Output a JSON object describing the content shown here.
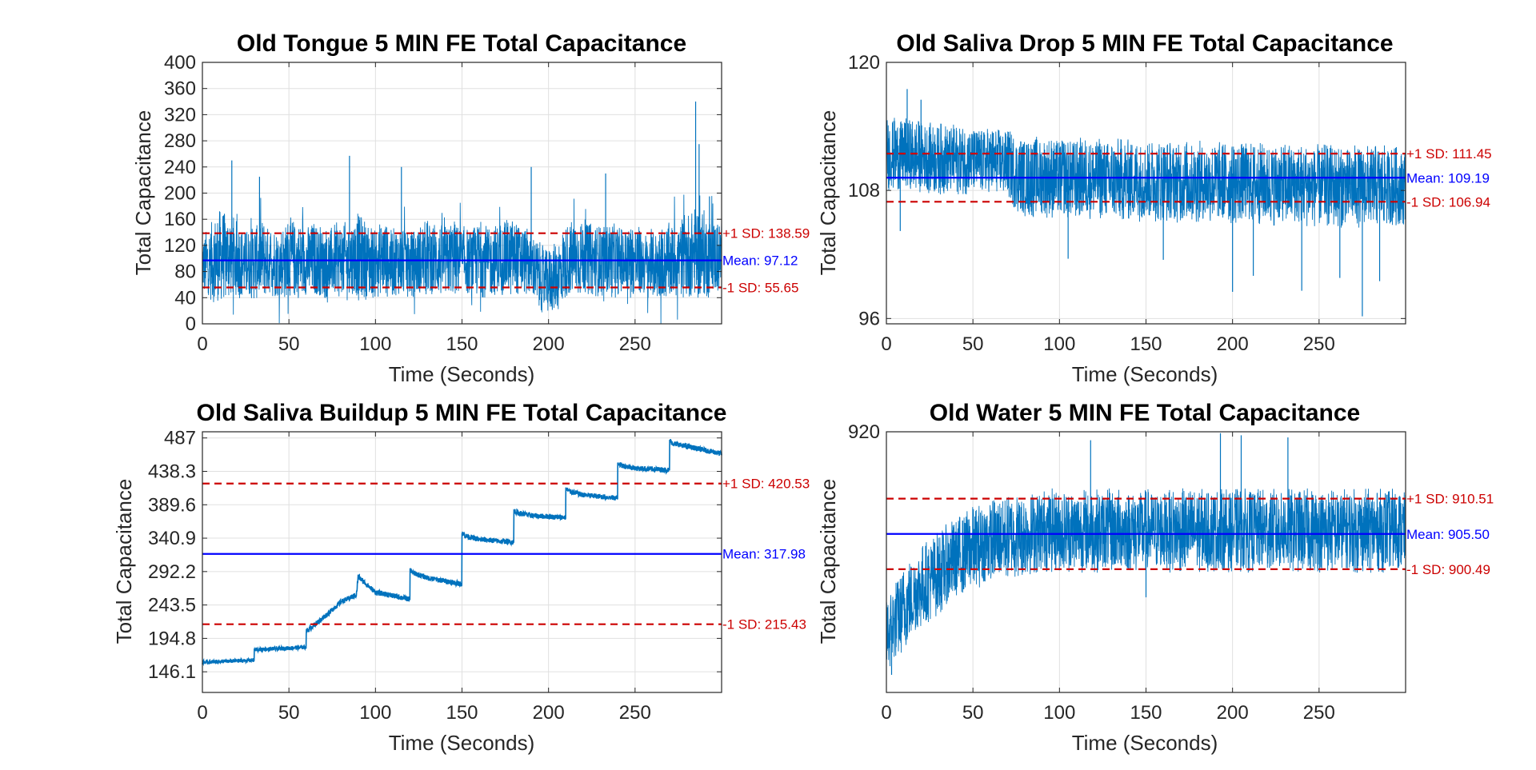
{
  "colors": {
    "signal": "#0072BD",
    "mean": "#0000FF",
    "sd": "#CC0000",
    "grid": "#E0E0E0",
    "axis": "#262626"
  },
  "chart_data": [
    {
      "type": "line",
      "title": "Old Tongue 5 MIN FE Total Capacitance",
      "xlabel": "Time (Seconds)",
      "ylabel": "Total Capacitance",
      "xlim": [
        0,
        300
      ],
      "ylim": [
        0,
        400
      ],
      "x_ticks": [
        0,
        50,
        100,
        150,
        200,
        250
      ],
      "y_ticks": [
        0,
        40,
        80,
        120,
        160,
        200,
        240,
        280,
        320,
        360,
        400
      ],
      "y_tick_labels": [
        "0",
        "40",
        "80",
        "120",
        "160",
        "200",
        "240",
        "280",
        "320",
        "360",
        "400"
      ],
      "grid": true,
      "series": [
        {
          "x": [
            0,
            5,
            10,
            15,
            20,
            25,
            30,
            35,
            40,
            45,
            50,
            55,
            60,
            65,
            70,
            75,
            80,
            85,
            90,
            95,
            100,
            105,
            110,
            115,
            120,
            125,
            130,
            135,
            140,
            145,
            150,
            155,
            160,
            165,
            170,
            175,
            180,
            185,
            190,
            195,
            200,
            205,
            210,
            215,
            220,
            225,
            230,
            235,
            240,
            245,
            250,
            255,
            260,
            265,
            270,
            275,
            280,
            285,
            290,
            295,
            300
          ],
          "y_mean": [
            90,
            95,
            100,
            105,
            98,
            92,
            96,
            100,
            95,
            92,
            100,
            96,
            94,
            98,
            92,
            95,
            100,
            97,
            104,
            96,
            94,
            100,
            92,
            95,
            90,
            96,
            100,
            98,
            95,
            102,
            97,
            94,
            100,
            95,
            98,
            100,
            102,
            96,
            92,
            70,
            65,
            72,
            95,
            100,
            102,
            98,
            96,
            100,
            94,
            96,
            98,
            90,
            88,
            92,
            96,
            100,
            104,
            110,
            105,
            102,
            100
          ],
          "y_spread": [
            45,
            60,
            75,
            70,
            60,
            55,
            60,
            60,
            55,
            55,
            65,
            60,
            55,
            60,
            55,
            55,
            60,
            55,
            70,
            60,
            55,
            60,
            55,
            55,
            50,
            55,
            60,
            60,
            55,
            60,
            55,
            50,
            60,
            55,
            55,
            60,
            60,
            55,
            50,
            55,
            50,
            55,
            60,
            60,
            60,
            55,
            55,
            60,
            55,
            55,
            60,
            50,
            50,
            55,
            60,
            60,
            65,
            75,
            70,
            60,
            60
          ],
          "peaks": [
            [
              17,
              250
            ],
            [
              33,
              225
            ],
            [
              85,
              257
            ],
            [
              115,
              240
            ],
            [
              190,
              240
            ],
            [
              233,
              230
            ],
            [
              285,
              340
            ],
            [
              287,
              275
            ],
            [
              293,
              195
            ]
          ]
        }
      ],
      "hlines": [
        {
          "kind": "sd",
          "value": 138.59,
          "label": "+1 SD: 138.59"
        },
        {
          "kind": "mean",
          "value": 97.12,
          "label": "Mean: 97.12"
        },
        {
          "kind": "sd",
          "value": 55.65,
          "label": "-1 SD: 55.65"
        }
      ]
    },
    {
      "type": "line",
      "title": "Old Saliva Drop 5 MIN FE Total Capacitance",
      "xlabel": "Time (Seconds)",
      "ylabel": "Total Capacitance",
      "xlim": [
        0,
        300
      ],
      "ylim": [
        95.5,
        120
      ],
      "x_ticks": [
        0,
        50,
        100,
        150,
        200,
        250
      ],
      "y_ticks": [
        96,
        108,
        120
      ],
      "y_tick_labels": [
        "96",
        "108",
        "120"
      ],
      "grid": true,
      "series": [
        {
          "x": [
            0,
            10,
            20,
            30,
            40,
            50,
            60,
            70,
            75,
            80,
            100,
            120,
            140,
            160,
            180,
            200,
            220,
            240,
            260,
            280,
            300
          ],
          "y_mean": [
            111.5,
            111.3,
            111.2,
            111.0,
            110.9,
            110.8,
            110.7,
            110.6,
            109.5,
            109.3,
            109.2,
            109.1,
            109.0,
            108.9,
            108.8,
            108.7,
            108.6,
            108.5,
            108.4,
            108.4,
            108.3
          ],
          "y_spread": [
            3.5,
            3.5,
            3.4,
            3.4,
            3.3,
            3.2,
            3.2,
            3.2,
            3.6,
            3.8,
            3.9,
            3.9,
            3.9,
            3.9,
            3.9,
            3.9,
            3.9,
            3.9,
            3.9,
            3.9,
            3.8
          ],
          "peaks": [
            [
              12,
              117.5
            ],
            [
              20,
              116.5
            ],
            [
              8,
              104.2
            ],
            [
              105,
              101.6
            ],
            [
              160,
              101.5
            ],
            [
              200,
              98.5
            ],
            [
              212,
              100.0
            ],
            [
              240,
              98.6
            ],
            [
              262,
              99.8
            ],
            [
              275,
              96.2
            ],
            [
              285,
              99.5
            ]
          ]
        }
      ],
      "hlines": [
        {
          "kind": "sd",
          "value": 111.45,
          "label": "+1 SD: 111.45"
        },
        {
          "kind": "mean",
          "value": 109.19,
          "label": "Mean: 109.19"
        },
        {
          "kind": "sd",
          "value": 106.94,
          "label": "-1 SD: 106.94"
        }
      ]
    },
    {
      "type": "line",
      "title": "Old Saliva Buildup 5 MIN FE Total Capacitance",
      "xlabel": "Time (Seconds)",
      "ylabel": "Total Capacitance",
      "xlim": [
        0,
        300
      ],
      "ylim": [
        116,
        496
      ],
      "x_ticks": [
        0,
        50,
        100,
        150,
        200,
        250
      ],
      "y_ticks": [
        146.1,
        194.8,
        243.5,
        292.2,
        340.9,
        389.6,
        438.3,
        487
      ],
      "y_tick_labels": [
        "146.1",
        "194.8",
        "243.5",
        "292.2",
        "340.9",
        "389.6",
        "438.3",
        "487"
      ],
      "grid": true,
      "series": [
        {
          "x": [
            0,
            29.9,
            30,
            59.9,
            60,
            70,
            80,
            89,
            90,
            92,
            100,
            119.9,
            120,
            122,
            130,
            149.9,
            150,
            152,
            160,
            179.9,
            180,
            182,
            190,
            209.9,
            210,
            212,
            220,
            239.9,
            240,
            242,
            250,
            269.9,
            270,
            272,
            285,
            300
          ],
          "y_mean": [
            160,
            163,
            178,
            182,
            205,
            225,
            248,
            258,
            285,
            280,
            262,
            252,
            295,
            290,
            283,
            274,
            349,
            344,
            339,
            335,
            381,
            378,
            374,
            371,
            413,
            409,
            404,
            399,
            451,
            447,
            443,
            440,
            483,
            479,
            472,
            464
          ],
          "y_spread": [
            3,
            3,
            3,
            3,
            4,
            4,
            4,
            4,
            5,
            4,
            4,
            4,
            4,
            4,
            4,
            4,
            4,
            4,
            4,
            4,
            4,
            4,
            4,
            4,
            4,
            4,
            4,
            4,
            4,
            4,
            4,
            4,
            4,
            4,
            4,
            4
          ],
          "peaks": []
        }
      ],
      "hlines": [
        {
          "kind": "sd",
          "value": 420.53,
          "label": "+1 SD: 420.53"
        },
        {
          "kind": "mean",
          "value": 317.98,
          "label": "Mean: 317.98"
        },
        {
          "kind": "sd",
          "value": 215.43,
          "label": "-1 SD: 215.43"
        }
      ]
    },
    {
      "type": "line",
      "title": "Old Water 5 MIN FE Total Capacitance",
      "xlabel": "Time (Seconds)",
      "ylabel": "Total Capacitance",
      "xlim": [
        0,
        300
      ],
      "ylim": [
        883,
        920
      ],
      "x_ticks": [
        0,
        50,
        100,
        150,
        200,
        250
      ],
      "y_ticks": [
        920
      ],
      "y_tick_labels": [
        "920"
      ],
      "grid": true,
      "series": [
        {
          "x": [
            0,
            5,
            10,
            20,
            30,
            40,
            50,
            60,
            70,
            80,
            90,
            100,
            120,
            140,
            160,
            180,
            200,
            220,
            240,
            260,
            280,
            300
          ],
          "y_mean": [
            891,
            893,
            895,
            898,
            900,
            902,
            903.5,
            904.5,
            905,
            905.5,
            906,
            906,
            906,
            906,
            906,
            906,
            906,
            906,
            906,
            906,
            906,
            906
          ],
          "y_spread": [
            5.5,
            6,
            6,
            6,
            6,
            6,
            6,
            6,
            6,
            6,
            6,
            6,
            6,
            6,
            6,
            6,
            6,
            6,
            6,
            6,
            6,
            6
          ],
          "peaks": [
            [
              3,
              885.5
            ],
            [
              150,
              896.5
            ],
            [
              193,
              919.8
            ],
            [
              205,
              919.5
            ],
            [
              232,
              919.2
            ],
            [
              118,
              918.8
            ],
            [
              272,
              900.0
            ]
          ]
        }
      ],
      "hlines": [
        {
          "kind": "sd",
          "value": 910.51,
          "label": "+1 SD: 910.51"
        },
        {
          "kind": "mean",
          "value": 905.5,
          "label": "Mean: 905.50"
        },
        {
          "kind": "sd",
          "value": 900.49,
          "label": "-1 SD: 900.49"
        }
      ]
    }
  ]
}
